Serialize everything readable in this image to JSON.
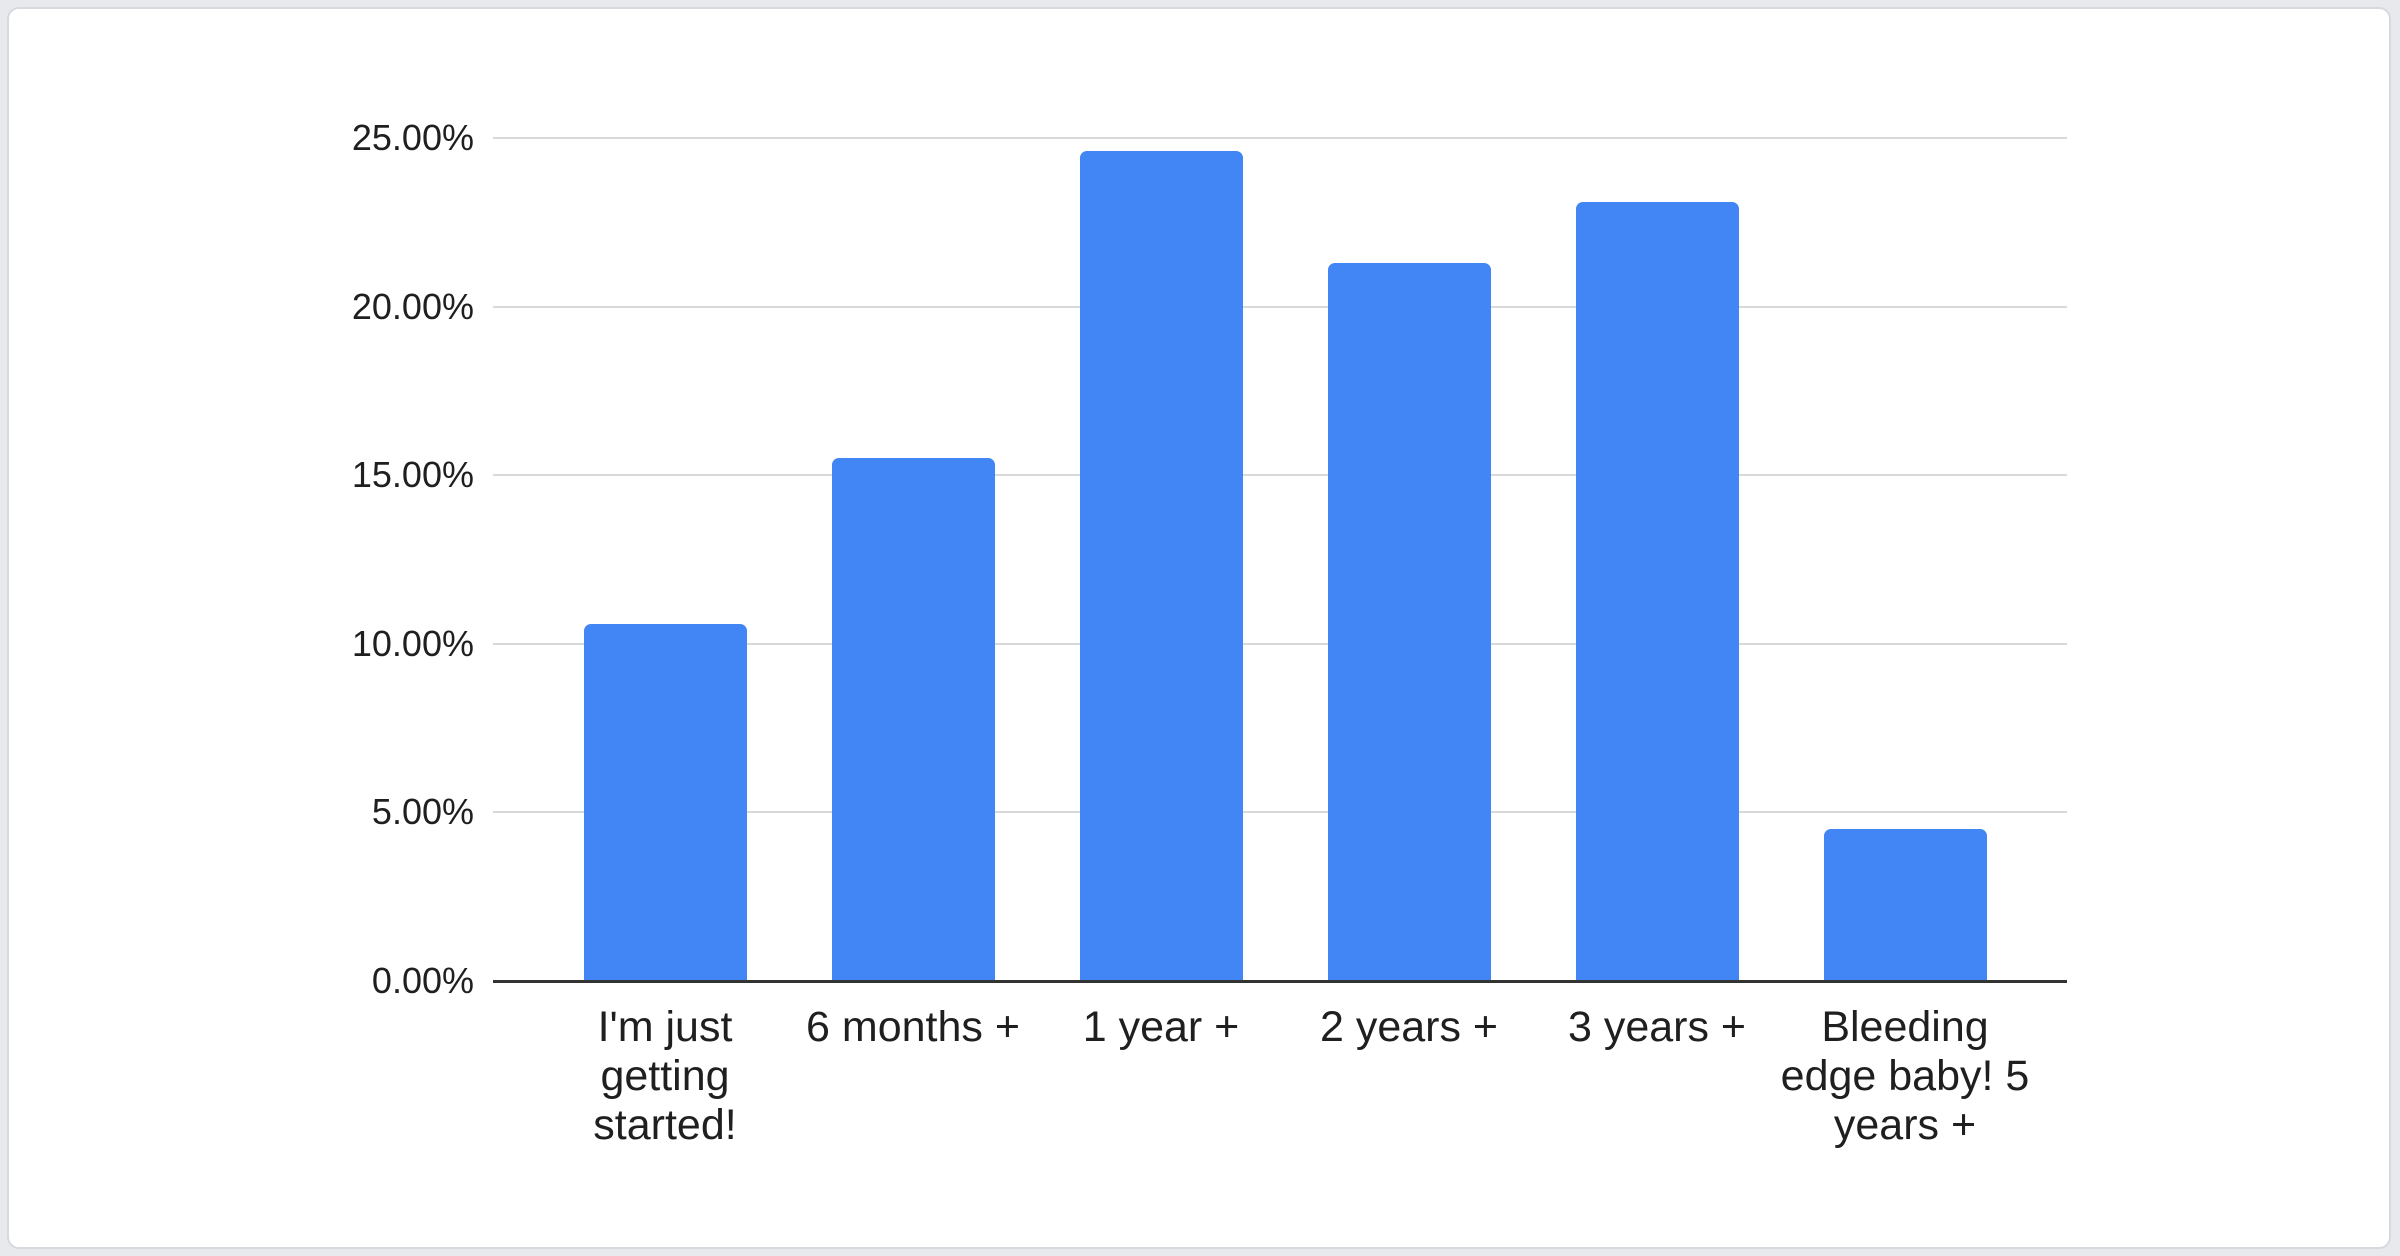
{
  "chart_data": {
    "type": "bar",
    "title": "",
    "xlabel": "",
    "ylabel": "",
    "categories": [
      "I'm just getting started!",
      "6 months +",
      "1 year +",
      "2 years +",
      "3 years +",
      "Bleeding edge baby! 5 years +"
    ],
    "values": [
      10.6,
      15.5,
      24.6,
      21.3,
      23.1,
      4.5
    ],
    "value_unit": "%",
    "ylim": [
      0,
      25
    ],
    "y_ticks": [
      {
        "value": 0,
        "label": "0.00%"
      },
      {
        "value": 5,
        "label": "5.00%"
      },
      {
        "value": 10,
        "label": "10.00%"
      },
      {
        "value": 15,
        "label": "15.00%"
      },
      {
        "value": 20,
        "label": "20.00%"
      },
      {
        "value": 25,
        "label": "25.00%"
      }
    ],
    "grid": true,
    "legend": "none",
    "colors": {
      "bar": "#4285f4",
      "gridline": "#d9d9d9",
      "axis_line": "#333333",
      "text": "#1f1f1f",
      "card_background": "#ffffff",
      "card_border": "#d6d9dd",
      "page_background": "#e7e9ec"
    }
  }
}
